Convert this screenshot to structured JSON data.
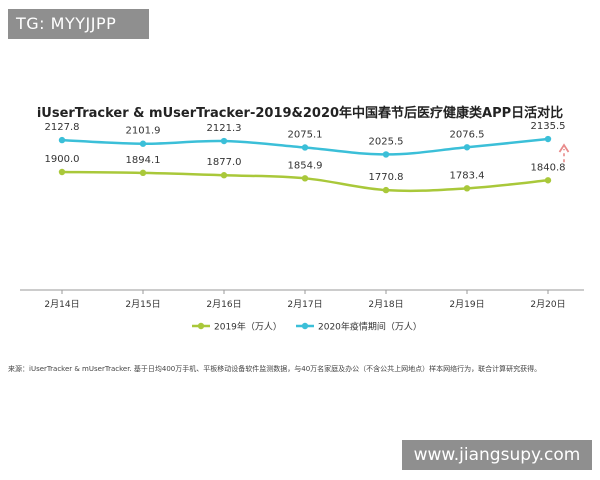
{
  "watermarks": {
    "top": "TG: MYYJJPP",
    "bottom": "www.jiangsupy.com"
  },
  "source_note": "来源：iUserTracker & mUserTracker. 基于日均400万手机、平板移动设备软件监测数据，与40万名家庭及办公（不含公共上网地点）样本网络行为，联合计算研究获得。",
  "colors": {
    "series_2019": "#a9c83a",
    "series_2020": "#3bbfd8",
    "axis": "#9a9a9a",
    "arrow": "#e88a8a"
  },
  "chart_data": {
    "type": "line",
    "title": "iUserTracker & mUserTracker-2019&2020年中国春节后医疗健康类APP日活对比",
    "categories": [
      "2月14日",
      "2月15日",
      "2月16日",
      "2月17日",
      "2月18日",
      "2月19日",
      "2月20日"
    ],
    "series": [
      {
        "name": "2019年（万人）",
        "values": [
          1900.0,
          1894.1,
          1877.0,
          1854.9,
          1770.8,
          1783.4,
          1840.8
        ],
        "labels": [
          "1900.0",
          "1894.1",
          "1877.0",
          "1854.9",
          "1770.8",
          "1783.4",
          "1840.8"
        ]
      },
      {
        "name": "2020年疫情期间（万人）",
        "values": [
          2127.8,
          2101.9,
          2121.3,
          2075.1,
          2025.5,
          2076.5,
          2135.5
        ],
        "labels": [
          "2127.8",
          "2101.9",
          "2121.3",
          "2075.1",
          "2025.5",
          "2076.5",
          "2135.5"
        ]
      }
    ],
    "xlabel": "",
    "ylabel": "",
    "grid": false,
    "legend_position": "bottom-center",
    "annotation": "dashed up-arrow at 2月20日"
  }
}
